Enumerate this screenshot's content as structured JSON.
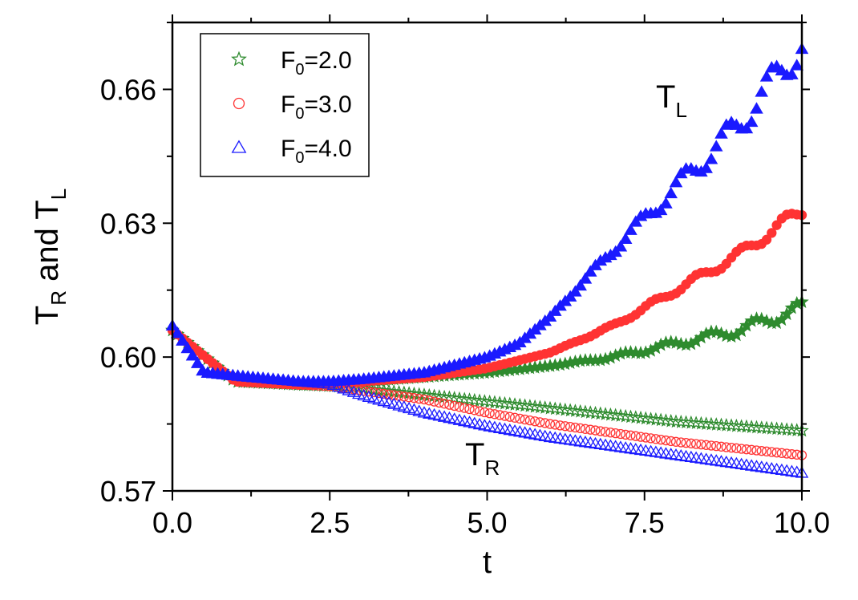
{
  "chart_data": {
    "type": "scatter",
    "title": "",
    "xlabel": "t",
    "ylabel": {
      "main": "T",
      "sub1": "R",
      "mid": " and T",
      "sub2": "L"
    },
    "xlim": [
      0.0,
      10.0
    ],
    "ylim": [
      0.57,
      0.675
    ],
    "xticks": [
      "0.0",
      "2.5",
      "5.0",
      "7.5",
      "10.0"
    ],
    "yticks": [
      "0.57",
      "0.60",
      "0.63",
      "0.66"
    ],
    "legend_position": "top-left",
    "legend": [
      {
        "base": "F",
        "sub": "0",
        "rest": "=2.0"
      },
      {
        "base": "F",
        "sub": "0",
        "rest": "=3.0"
      },
      {
        "base": "F",
        "sub": "0",
        "rest": "=4.0"
      }
    ],
    "annotations": {
      "TL": {
        "base": "T",
        "sub": "L"
      },
      "TR": {
        "base": "T",
        "sub": "R"
      }
    },
    "series": [
      {
        "name": "F0=2.0",
        "quantity": "T_L",
        "marker": "star",
        "fill": "filled",
        "color": "#2e8b2e",
        "x": [
          0.0,
          1.0,
          2.0,
          2.5,
          3.0,
          4.0,
          5.0,
          6.0,
          7.0,
          8.0,
          9.0,
          10.0
        ],
        "y": [
          0.606,
          0.5945,
          0.5938,
          0.594,
          0.5945,
          0.5955,
          0.5965,
          0.598,
          0.6,
          0.603,
          0.606,
          0.611
        ]
      },
      {
        "name": "F0=2.0",
        "quantity": "T_R",
        "marker": "star",
        "fill": "open",
        "color": "#2e8b2e",
        "x": [
          0.0,
          1.0,
          2.0,
          2.5,
          3.0,
          4.0,
          5.0,
          6.0,
          7.0,
          8.0,
          9.0,
          10.0
        ],
        "y": [
          0.606,
          0.5945,
          0.5938,
          0.5935,
          0.593,
          0.5915,
          0.59,
          0.5885,
          0.587,
          0.5855,
          0.5845,
          0.5835
        ]
      },
      {
        "name": "F0=3.0",
        "quantity": "T_L",
        "marker": "circle",
        "fill": "filled",
        "color": "#ff3333",
        "x": [
          0.0,
          1.0,
          2.0,
          2.5,
          3.0,
          4.0,
          5.0,
          6.0,
          7.0,
          8.0,
          9.0,
          10.0
        ],
        "y": [
          0.606,
          0.5945,
          0.5938,
          0.594,
          0.5945,
          0.5955,
          0.5975,
          0.601,
          0.607,
          0.615,
          0.623,
          0.633
        ]
      },
      {
        "name": "F0=3.0",
        "quantity": "T_R",
        "marker": "circle",
        "fill": "open",
        "color": "#ff3333",
        "x": [
          0.0,
          1.0,
          2.0,
          2.5,
          3.0,
          4.0,
          5.0,
          6.0,
          7.0,
          8.0,
          9.0,
          10.0
        ],
        "y": [
          0.606,
          0.5945,
          0.5938,
          0.5935,
          0.5925,
          0.5905,
          0.5875,
          0.585,
          0.583,
          0.581,
          0.5795,
          0.578
        ]
      },
      {
        "name": "F0=4.0",
        "quantity": "T_L",
        "marker": "triangle",
        "fill": "filled",
        "color": "#1a1aff",
        "x": [
          0.0,
          0.5,
          1.0,
          2.0,
          2.5,
          3.0,
          4.0,
          5.0,
          5.5,
          6.0,
          7.0,
          8.0,
          9.0,
          10.0
        ],
        "y": [
          0.607,
          0.5965,
          0.5958,
          0.5945,
          0.5945,
          0.595,
          0.5965,
          0.6,
          0.603,
          0.609,
          0.624,
          0.638,
          0.652,
          0.67
        ]
      },
      {
        "name": "F0=4.0",
        "quantity": "T_R",
        "marker": "triangle",
        "fill": "open",
        "color": "#1a1aff",
        "x": [
          0.0,
          0.5,
          1.0,
          2.0,
          2.5,
          3.0,
          4.0,
          5.0,
          6.0,
          7.0,
          8.0,
          9.0,
          10.0
        ],
        "y": [
          0.607,
          0.5965,
          0.5958,
          0.5945,
          0.594,
          0.5915,
          0.5875,
          0.5845,
          0.582,
          0.58,
          0.578,
          0.576,
          0.574
        ]
      }
    ]
  }
}
